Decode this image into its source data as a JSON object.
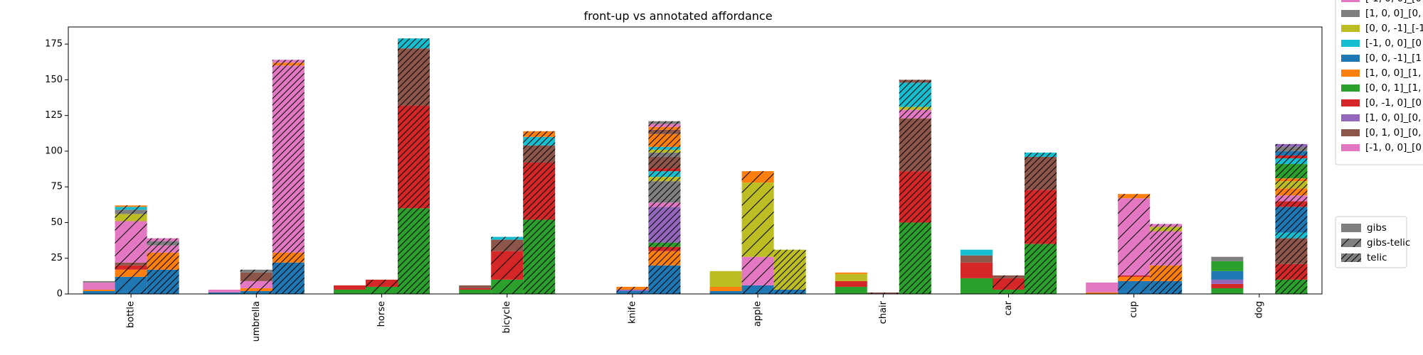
{
  "chart_data": {
    "type": "bar",
    "title": "front-up vs annotated affordance",
    "xlabel": "",
    "ylabel": "",
    "ylim": [
      0,
      187
    ],
    "yticks": [
      0,
      25,
      50,
      75,
      100,
      125,
      150,
      175
    ],
    "categories": [
      "bottle",
      "umbrella",
      "horse",
      "bicycle",
      "knife",
      "apple",
      "chair",
      "car",
      "cup",
      "dog"
    ],
    "groups": [
      "gibs",
      "gibs-telic",
      "telic"
    ],
    "series_legend": [
      {
        "label": "[-1, 0, 0]_[0",
        "color": "#e377c2"
      },
      {
        "label": "[1, 0, 0]_[0,",
        "color": "#7f7f7f"
      },
      {
        "label": "[0, 0, -1]_[-1",
        "color": "#bcbd22"
      },
      {
        "label": "[-1, 0, 0]_[0",
        "color": "#17becf"
      },
      {
        "label": "[0, 0, -1]_[1",
        "color": "#1f77b4"
      },
      {
        "label": "[1, 0, 0]_[1,",
        "color": "#ff7f0e"
      },
      {
        "label": "[0, 0, 1]_[1,",
        "color": "#2ca02c"
      },
      {
        "label": "[0, -1, 0]_[0",
        "color": "#d62728"
      },
      {
        "label": "[1, 0, 0]_[0,",
        "color": "#9467bd"
      },
      {
        "label": "[0, 1, 0]_[0,",
        "color": "#8c564b"
      },
      {
        "label": "[-1, 0, 0]_[0",
        "color": "#e377c2"
      }
    ],
    "hatch_legend": [
      {
        "label": "gibs",
        "hatch": "none"
      },
      {
        "label": "gibs-telic",
        "hatch": "single"
      },
      {
        "label": "telic",
        "hatch": "double"
      }
    ],
    "stacks": {
      "bottle": {
        "gibs": [
          [
            0,
            "#2ca02c"
          ],
          [
            2,
            "#1f77b4"
          ],
          [
            1,
            "#ff7f0e"
          ],
          [
            5,
            "#e377c2"
          ],
          [
            1,
            "#7f7f7f"
          ]
        ],
        "gibs-telic": [
          [
            12,
            "#1f77b4"
          ],
          [
            5,
            "#ff7f0e"
          ],
          [
            3,
            "#d62728"
          ],
          [
            2,
            "#8c564b"
          ],
          [
            29,
            "#e377c2"
          ],
          [
            5,
            "#bcbd22"
          ],
          [
            3,
            "#7f7f7f"
          ],
          [
            2,
            "#17becf"
          ],
          [
            1,
            "#ff7f0e"
          ]
        ],
        "telic": [
          [
            17,
            "#1f77b4"
          ],
          [
            12,
            "#ff7f0e"
          ],
          [
            5,
            "#e377c2"
          ],
          [
            3,
            "#7f7f7f"
          ],
          [
            2,
            "#e377c2"
          ]
        ]
      },
      "umbrella": {
        "gibs": [
          [
            1,
            "#1f77b4"
          ],
          [
            2,
            "#e377c2"
          ]
        ],
        "gibs-telic": [
          [
            2,
            "#1f77b4"
          ],
          [
            2,
            "#ff7f0e"
          ],
          [
            5,
            "#e377c2"
          ],
          [
            6,
            "#8c564b"
          ],
          [
            2,
            "#7f7f7f"
          ]
        ],
        "telic": [
          [
            22,
            "#1f77b4"
          ],
          [
            7,
            "#ff7f0e"
          ],
          [
            131,
            "#e377c2"
          ],
          [
            2,
            "#ff7f0e"
          ],
          [
            2,
            "#e377c2"
          ]
        ]
      },
      "horse": {
        "gibs": [
          [
            3,
            "#2ca02c"
          ],
          [
            3,
            "#d62728"
          ]
        ],
        "gibs-telic": [
          [
            5,
            "#2ca02c"
          ],
          [
            5,
            "#d62728"
          ]
        ],
        "telic": [
          [
            60,
            "#2ca02c"
          ],
          [
            72,
            "#d62728"
          ],
          [
            40,
            "#8c564b"
          ],
          [
            7,
            "#17becf"
          ]
        ]
      },
      "bicycle": {
        "gibs": [
          [
            3,
            "#2ca02c"
          ],
          [
            1,
            "#d62728"
          ],
          [
            2,
            "#8c564b"
          ]
        ],
        "gibs-telic": [
          [
            10,
            "#2ca02c"
          ],
          [
            20,
            "#d62728"
          ],
          [
            8,
            "#8c564b"
          ],
          [
            2,
            "#17becf"
          ]
        ],
        "telic": [
          [
            52,
            "#2ca02c"
          ],
          [
            40,
            "#d62728"
          ],
          [
            12,
            "#8c564b"
          ],
          [
            6,
            "#17becf"
          ],
          [
            4,
            "#ff7f0e"
          ]
        ]
      },
      "knife": {
        "gibs": [],
        "gibs-telic": [
          [
            2,
            "#1f77b4"
          ],
          [
            1,
            "#9467bd"
          ],
          [
            2,
            "#ff7f0e"
          ]
        ],
        "telic": [
          [
            20,
            "#1f77b4"
          ],
          [
            10,
            "#ff7f0e"
          ],
          [
            3,
            "#d62728"
          ],
          [
            3,
            "#2ca02c"
          ],
          [
            25,
            "#9467bd"
          ],
          [
            3,
            "#e377c2"
          ],
          [
            15,
            "#7f7f7f"
          ],
          [
            3,
            "#bcbd22"
          ],
          [
            4,
            "#17becf"
          ],
          [
            2,
            "#d62728"
          ],
          [
            8,
            "#8c564b"
          ],
          [
            3,
            "#7f7f7f"
          ],
          [
            2,
            "#bcbd22"
          ],
          [
            2,
            "#17becf"
          ],
          [
            9,
            "#ff7f0e"
          ],
          [
            3,
            "#8c564b"
          ],
          [
            2,
            "#ff7f0e"
          ],
          [
            2,
            "#e377c2"
          ],
          [
            2,
            "#7f7f7f"
          ]
        ]
      },
      "apple": {
        "gibs": [
          [
            2,
            "#1f77b4"
          ],
          [
            3,
            "#ff7f0e"
          ],
          [
            11,
            "#bcbd22"
          ]
        ],
        "gibs-telic": [
          [
            6,
            "#1f77b4"
          ],
          [
            20,
            "#e377c2"
          ],
          [
            52,
            "#bcbd22"
          ],
          [
            8,
            "#ff7f0e"
          ]
        ],
        "telic": [
          [
            3,
            "#1f77b4"
          ],
          [
            28,
            "#bcbd22"
          ]
        ]
      },
      "chair": {
        "gibs": [
          [
            5,
            "#2ca02c"
          ],
          [
            4,
            "#d62728"
          ],
          [
            5,
            "#bcbd22"
          ],
          [
            1,
            "#ff7f0e"
          ]
        ],
        "gibs-telic": [
          [
            1,
            "#8c564b"
          ]
        ],
        "telic": [
          [
            50,
            "#2ca02c"
          ],
          [
            36,
            "#d62728"
          ],
          [
            37,
            "#8c564b"
          ],
          [
            6,
            "#e377c2"
          ],
          [
            2,
            "#bcbd22"
          ],
          [
            17,
            "#17becf"
          ],
          [
            2,
            "#8c564b"
          ]
        ]
      },
      "car": {
        "gibs": [
          [
            11,
            "#2ca02c"
          ],
          [
            11,
            "#d62728"
          ],
          [
            5,
            "#8c564b"
          ],
          [
            4,
            "#17becf"
          ]
        ],
        "gibs-telic": [
          [
            3,
            "#2ca02c"
          ],
          [
            8,
            "#d62728"
          ],
          [
            2,
            "#8c564b"
          ]
        ],
        "telic": [
          [
            35,
            "#2ca02c"
          ],
          [
            38,
            "#d62728"
          ],
          [
            23,
            "#8c564b"
          ],
          [
            3,
            "#17becf"
          ]
        ]
      },
      "cup": {
        "gibs": [
          [
            1,
            "#ff7f0e"
          ],
          [
            7,
            "#e377c2"
          ]
        ],
        "gibs-telic": [
          [
            9,
            "#1f77b4"
          ],
          [
            3,
            "#ff7f0e"
          ],
          [
            1,
            "#d62728"
          ],
          [
            54,
            "#e377c2"
          ],
          [
            3,
            "#ff7f0e"
          ]
        ],
        "telic": [
          [
            9,
            "#1f77b4"
          ],
          [
            11,
            "#ff7f0e"
          ],
          [
            24,
            "#e377c2"
          ],
          [
            3,
            "#bcbd22"
          ],
          [
            2,
            "#e377c2"
          ]
        ]
      },
      "dog": {
        "gibs": [
          [
            4,
            "#2ca02c"
          ],
          [
            3,
            "#d62728"
          ],
          [
            3,
            "#9467bd"
          ],
          [
            6,
            "#1f77b4"
          ],
          [
            7,
            "#2ca02c"
          ],
          [
            3,
            "#7f7f7f"
          ]
        ],
        "gibs-telic": [],
        "telic": [
          [
            10,
            "#2ca02c"
          ],
          [
            11,
            "#d62728"
          ],
          [
            18,
            "#8c564b"
          ],
          [
            4,
            "#17becf"
          ],
          [
            18,
            "#1f77b4"
          ],
          [
            4,
            "#d62728"
          ],
          [
            4,
            "#e377c2"
          ],
          [
            5,
            "#ff7f0e"
          ],
          [
            5,
            "#bcbd22"
          ],
          [
            2,
            "#ff7f0e"
          ],
          [
            10,
            "#2ca02c"
          ],
          [
            4,
            "#17becf"
          ],
          [
            2,
            "#d62728"
          ],
          [
            3,
            "#1f77b4"
          ],
          [
            3,
            "#7f7f7f"
          ],
          [
            2,
            "#9467bd"
          ]
        ]
      }
    }
  }
}
